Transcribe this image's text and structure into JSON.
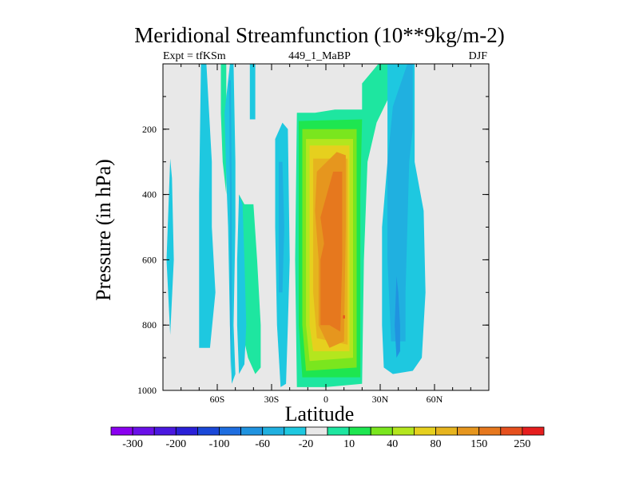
{
  "chart_data": {
    "type": "heatmap",
    "title": "Meridional Streamfunction (10**9kg/m-2)",
    "subtitle_left": "Expt = tfKSm",
    "subtitle_center": "449_1_MaBP",
    "subtitle_right": "DJF",
    "xlabel": "Latitude",
    "ylabel": "Pressure (in hPa)",
    "xlim": [
      -90,
      90
    ],
    "ylim": [
      1000,
      0
    ],
    "x_ticks": [
      {
        "value": -60,
        "label": "60S"
      },
      {
        "value": -30,
        "label": "30S"
      },
      {
        "value": 0,
        "label": "0"
      },
      {
        "value": 30,
        "label": "30N"
      },
      {
        "value": 60,
        "label": "60N"
      }
    ],
    "y_ticks": [
      {
        "value": 200,
        "label": "200"
      },
      {
        "value": 400,
        "label": "400"
      },
      {
        "value": 600,
        "label": "600"
      },
      {
        "value": 800,
        "label": "800"
      },
      {
        "value": 1000,
        "label": "1000"
      }
    ],
    "missing_color": "#e8e8e8",
    "colorbar": {
      "colors": [
        "#8a00f0",
        "#6a10e8",
        "#4a18e0",
        "#2a20d8",
        "#1a48d8",
        "#1e6ee0",
        "#2093e0",
        "#20b0e0",
        "#1ec8e0",
        "#e8e8e8",
        "#1ee6a0",
        "#1ee650",
        "#7ae61e",
        "#b4e61e",
        "#e6d01e",
        "#e6b41e",
        "#e6961e",
        "#e6781e",
        "#e6501e",
        "#e61e1e"
      ],
      "labels": [
        "-300",
        "-200",
        "-100",
        "-60",
        "-20",
        "10",
        "40",
        "80",
        "150",
        "250"
      ]
    },
    "field_levels": {
      "-7": "#2093e0",
      "-6": "#20b0e0",
      "-5": "#1ec8e0",
      "1": "#1ee6a0",
      "2": "#1ee650",
      "3": "#7ae61e",
      "4": "#b4e61e",
      "5": "#e6d01e",
      "6": "#e6b41e",
      "7": "#e6961e",
      "8": "#e6781e",
      "9": "#e6501e"
    },
    "regions": [
      {
        "level": -5,
        "points": [
          [
            -86,
            290
          ],
          [
            -85,
            350
          ],
          [
            -84,
            600
          ],
          [
            -86,
            830
          ],
          [
            -88,
            600
          ]
        ]
      },
      {
        "level": -5,
        "points": [
          [
            -69,
            0
          ],
          [
            -66,
            0
          ],
          [
            -63,
            300
          ],
          [
            -63,
            500
          ],
          [
            -61,
            700
          ],
          [
            -64,
            870
          ],
          [
            -70,
            870
          ],
          [
            -70,
            650
          ],
          [
            -70,
            400
          ]
        ]
      },
      {
        "level": 1,
        "points": [
          [
            -58,
            0
          ],
          [
            -55,
            0
          ],
          [
            -55,
            400
          ],
          [
            -57,
            300
          ],
          [
            -58,
            150
          ]
        ]
      },
      {
        "level": -5,
        "points": [
          [
            -56,
            150
          ],
          [
            -53,
            0
          ],
          [
            -51,
            0
          ],
          [
            -50,
            300
          ],
          [
            -50,
            500
          ],
          [
            -51,
            800
          ],
          [
            -50,
            950
          ],
          [
            -52,
            980
          ],
          [
            -53,
            800
          ],
          [
            -54,
            500
          ],
          [
            -55,
            350
          ]
        ]
      },
      {
        "level": -6,
        "points": [
          [
            -53.5,
            50
          ],
          [
            -52.5,
            50
          ],
          [
            -52,
            400
          ],
          [
            -52,
            800
          ],
          [
            -52.5,
            950
          ],
          [
            -53,
            800
          ],
          [
            -53,
            400
          ]
        ]
      },
      {
        "level": -5,
        "points": [
          [
            -42,
            0
          ],
          [
            -39,
            0
          ],
          [
            -39,
            170
          ],
          [
            -42,
            170
          ]
        ]
      },
      {
        "level": 1,
        "points": [
          [
            -48,
            400
          ],
          [
            -45,
            430
          ],
          [
            -40,
            430
          ],
          [
            -38,
            600
          ],
          [
            -36,
            800
          ],
          [
            -36,
            930
          ],
          [
            -39,
            950
          ],
          [
            -43,
            900
          ],
          [
            -47,
            800
          ],
          [
            -48,
            600
          ]
        ]
      },
      {
        "level": -5,
        "points": [
          [
            -48,
            400
          ],
          [
            -46,
            430
          ],
          [
            -45,
            600
          ],
          [
            -44,
            800
          ],
          [
            -45,
            920
          ],
          [
            -48,
            950
          ],
          [
            -49,
            800
          ],
          [
            -49,
            600
          ]
        ]
      },
      {
        "level": -5,
        "points": [
          [
            -28,
            230
          ],
          [
            -24,
            180
          ],
          [
            -21,
            200
          ],
          [
            -20,
            600
          ],
          [
            -21,
            800
          ],
          [
            -22,
            980
          ],
          [
            -25,
            990
          ],
          [
            -27,
            800
          ],
          [
            -28,
            500
          ]
        ]
      },
      {
        "level": -6,
        "points": [
          [
            -26,
            300
          ],
          [
            -24,
            300
          ],
          [
            -23,
            500
          ],
          [
            -24,
            700
          ],
          [
            -26,
            700
          ]
        ]
      },
      {
        "level": 1,
        "points": [
          [
            -16,
            150
          ],
          [
            -6,
            150
          ],
          [
            5,
            140
          ],
          [
            16,
            140
          ],
          [
            20,
            140
          ],
          [
            20,
            60
          ],
          [
            26,
            20
          ],
          [
            29,
            0
          ],
          [
            40,
            0
          ],
          [
            38,
            30
          ],
          [
            35,
            100
          ],
          [
            28,
            180
          ],
          [
            23,
            300
          ],
          [
            21,
            600
          ],
          [
            20,
            980
          ],
          [
            0,
            990
          ],
          [
            -16,
            990
          ],
          [
            -17,
            600
          ]
        ]
      },
      {
        "level": 2,
        "points": [
          [
            -15,
            175
          ],
          [
            20,
            170
          ],
          [
            19,
            400
          ],
          [
            19,
            800
          ],
          [
            19,
            960
          ],
          [
            -13,
            960
          ],
          [
            -15,
            800
          ],
          [
            -15,
            400
          ]
        ]
      },
      {
        "level": 3,
        "points": [
          [
            -13,
            200
          ],
          [
            17,
            200
          ],
          [
            17,
            400
          ],
          [
            17,
            930
          ],
          [
            -11,
            940
          ],
          [
            -13,
            800
          ],
          [
            -13,
            400
          ]
        ]
      },
      {
        "level": 4,
        "points": [
          [
            -11,
            230
          ],
          [
            15,
            230
          ],
          [
            15,
            400
          ],
          [
            15,
            900
          ],
          [
            -9,
            910
          ],
          [
            -11,
            800
          ],
          [
            -11,
            400
          ]
        ]
      },
      {
        "level": 5,
        "points": [
          [
            -9,
            250
          ],
          [
            13,
            250
          ],
          [
            13,
            400
          ],
          [
            13,
            880
          ],
          [
            -7,
            880
          ],
          [
            -9,
            800
          ],
          [
            -9,
            400
          ]
        ]
      },
      {
        "level": 6,
        "points": [
          [
            -7,
            290
          ],
          [
            12,
            290
          ],
          [
            12,
            500
          ],
          [
            12,
            860
          ],
          [
            -5,
            840
          ],
          [
            -7,
            700
          ],
          [
            -7,
            400
          ]
        ]
      },
      {
        "level": 7,
        "points": [
          [
            -5,
            330
          ],
          [
            6,
            270
          ],
          [
            11,
            280
          ],
          [
            11,
            500
          ],
          [
            10,
            850
          ],
          [
            2,
            870
          ],
          [
            -4,
            800
          ],
          [
            -4,
            600
          ],
          [
            -6,
            450
          ]
        ]
      },
      {
        "level": 8,
        "points": [
          [
            -3,
            470
          ],
          [
            4,
            330
          ],
          [
            9,
            330
          ],
          [
            9,
            600
          ],
          [
            8,
            820
          ],
          [
            2,
            800
          ],
          [
            -3,
            800
          ],
          [
            -3,
            600
          ],
          [
            -1,
            550
          ]
        ]
      },
      {
        "level": 9,
        "points": [
          [
            9.5,
            770
          ],
          [
            10.5,
            770
          ],
          [
            10.5,
            780
          ],
          [
            9.5,
            780
          ]
        ]
      },
      {
        "level": -5,
        "points": [
          [
            34,
            0
          ],
          [
            49,
            0
          ],
          [
            49,
            300
          ],
          [
            54,
            450
          ],
          [
            55,
            700
          ],
          [
            53,
            900
          ],
          [
            48,
            940
          ],
          [
            37,
            950
          ],
          [
            32,
            930
          ],
          [
            31,
            800
          ],
          [
            31,
            500
          ],
          [
            34,
            300
          ]
        ]
      },
      {
        "level": -6,
        "points": [
          [
            37,
            130
          ],
          [
            45,
            0
          ],
          [
            48,
            0
          ],
          [
            48,
            200
          ],
          [
            46,
            300
          ],
          [
            44,
            700
          ],
          [
            44,
            850
          ],
          [
            36,
            850
          ],
          [
            34,
            600
          ],
          [
            34,
            300
          ]
        ]
      },
      {
        "level": -7,
        "points": [
          [
            39,
            650
          ],
          [
            40,
            700
          ],
          [
            41,
            800
          ],
          [
            41,
            880
          ],
          [
            39,
            900
          ],
          [
            38,
            800
          ]
        ]
      }
    ]
  }
}
